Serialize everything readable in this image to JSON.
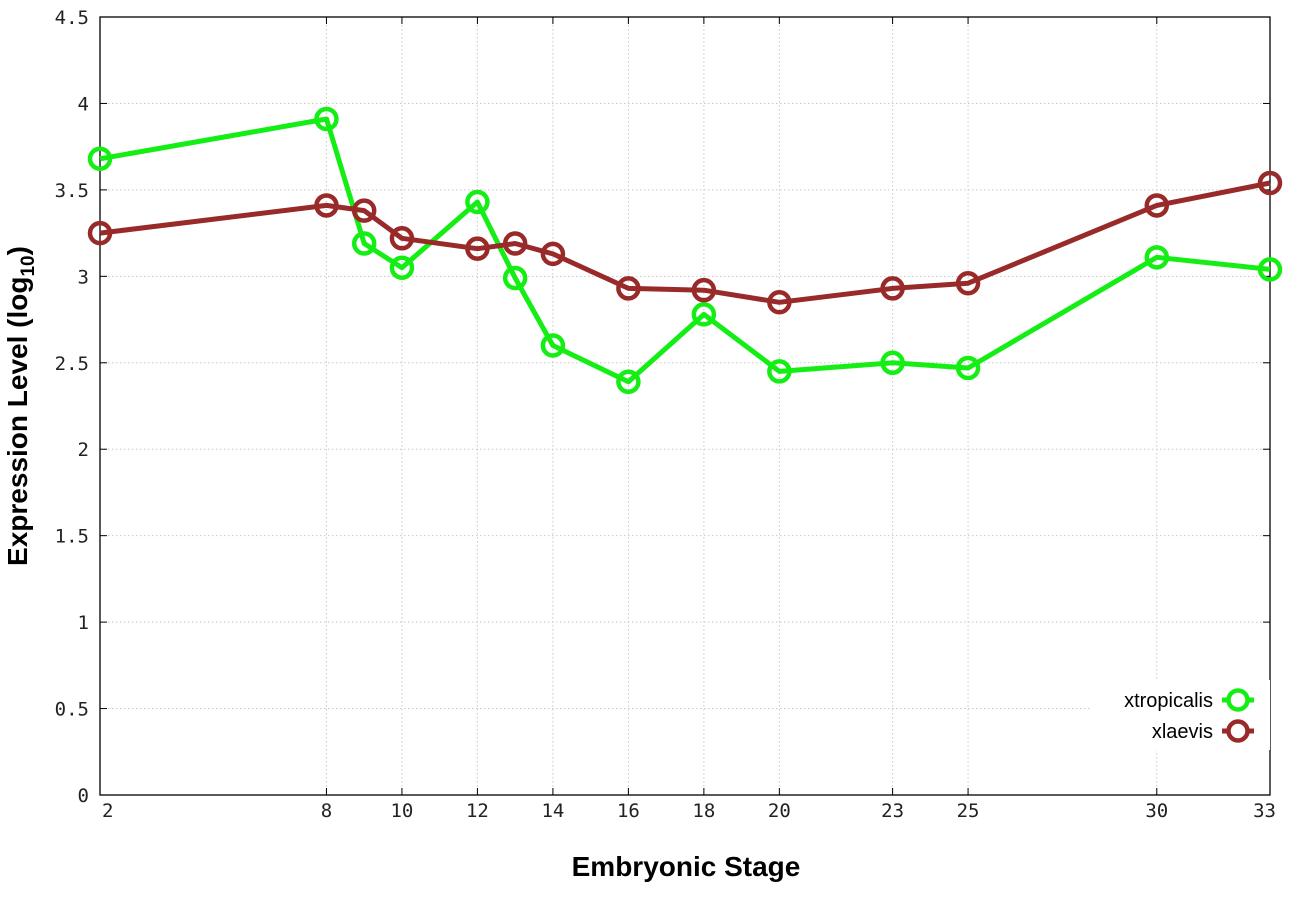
{
  "chart_data": {
    "type": "line",
    "xlabel": "Embryonic Stage",
    "ylabel": "Expression Level (log",
    "ylabel_subscript": "10",
    "ylabel_suffix": ")",
    "x_ticks": [
      2,
      8,
      10,
      12,
      14,
      16,
      18,
      20,
      23,
      25,
      30,
      33
    ],
    "y_ticks": [
      "0",
      "0.5",
      "1",
      "1.5",
      "2",
      "2.5",
      "3",
      "3.5",
      "4",
      "4.5"
    ],
    "xlim": [
      2,
      33
    ],
    "ylim": [
      0,
      4.5
    ],
    "grid": true,
    "legend_position": "bottom-right",
    "series": [
      {
        "name": "xtropicalis",
        "color": "#14ee14",
        "x": [
          2,
          8,
          9,
          10,
          12,
          13,
          14,
          16,
          18,
          20,
          23,
          25,
          30,
          33
        ],
        "y": [
          3.68,
          3.91,
          3.19,
          3.05,
          3.43,
          2.99,
          2.6,
          2.39,
          2.78,
          2.45,
          2.5,
          2.47,
          3.11,
          3.04
        ]
      },
      {
        "name": "xlaevis",
        "color": "#992a2a",
        "x": [
          2,
          8,
          9,
          10,
          12,
          13,
          14,
          16,
          18,
          20,
          23,
          25,
          30,
          33
        ],
        "y": [
          3.25,
          3.41,
          3.38,
          3.22,
          3.16,
          3.19,
          3.13,
          2.93,
          2.92,
          2.85,
          2.93,
          2.96,
          3.41,
          3.54
        ]
      }
    ]
  }
}
